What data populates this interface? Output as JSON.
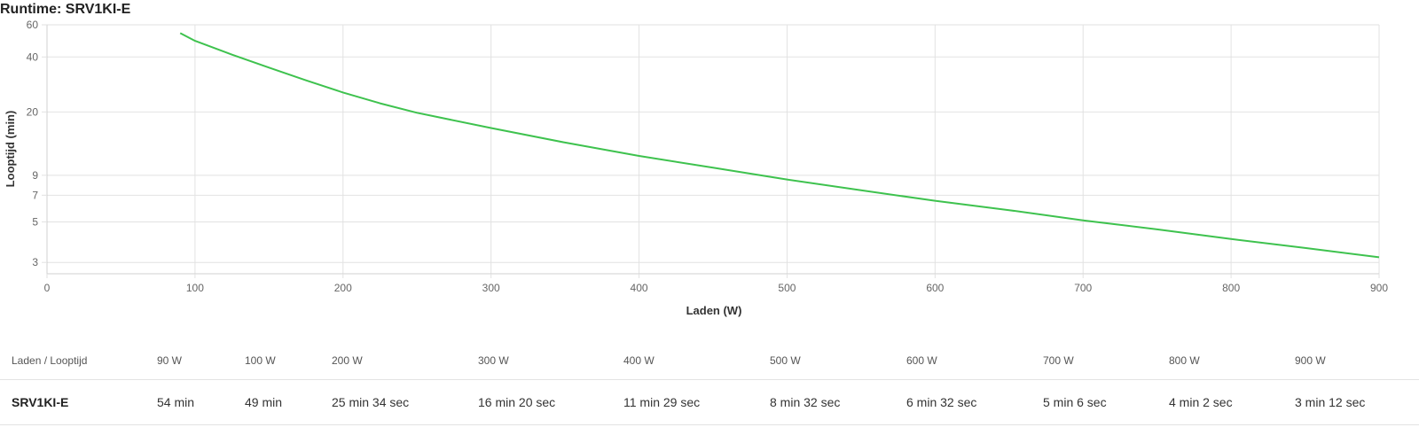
{
  "chart_data": {
    "type": "line",
    "title": "Runtime: SRV1KI-E",
    "xlabel": "Laden (W)",
    "ylabel": "Looptijd (min)",
    "xlim": [
      0,
      900
    ],
    "xticks": [
      0,
      100,
      200,
      300,
      400,
      500,
      600,
      700,
      800,
      900
    ],
    "yscale": "log",
    "ylim": [
      2.6,
      60
    ],
    "yticks": [
      3,
      5,
      7,
      9,
      20,
      40,
      60
    ],
    "grid": true,
    "legend": "none",
    "series": [
      {
        "color": "#3ec24e",
        "x": [
          90,
          100,
          125,
          150,
          175,
          200,
          225,
          250,
          300,
          350,
          400,
          450,
          500,
          550,
          600,
          650,
          700,
          750,
          800,
          850,
          900
        ],
        "y": [
          54,
          49,
          41.2,
          35,
          29.8,
          25.57,
          22.3,
          19.8,
          16.33,
          13.6,
          11.48,
          9.9,
          8.53,
          7.45,
          6.53,
          5.8,
          5.1,
          4.55,
          4.03,
          3.6,
          3.2
        ]
      }
    ]
  },
  "table": {
    "header_label": "Laden / Looptijd",
    "loads": [
      "90 W",
      "100 W",
      "200 W",
      "300 W",
      "400 W",
      "500 W",
      "600 W",
      "700 W",
      "800 W",
      "900 W"
    ],
    "model": "SRV1KI-E",
    "runtimes": [
      "54 min",
      "49 min",
      "25 min 34 sec",
      "16 min 20 sec",
      "11 min 29 sec",
      "8 min 32 sec",
      "6 min 32 sec",
      "5 min 6 sec",
      "4 min 2 sec",
      "3 min 12 sec"
    ]
  },
  "colors": {
    "line": "#3ec24e",
    "grid": "#e2e2e2",
    "axis_text": "#666666"
  }
}
